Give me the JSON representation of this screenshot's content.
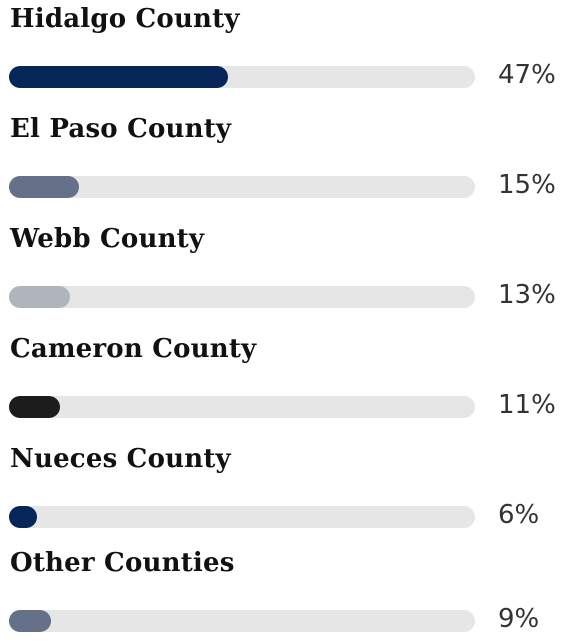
{
  "chart_data": {
    "type": "bar",
    "orientation": "horizontal",
    "categories": [
      "Hidalgo County",
      "El Paso County",
      "Webb County",
      "Cameron County",
      "Nueces County",
      "Other Counties"
    ],
    "values": [
      47,
      15,
      13,
      11,
      6,
      9
    ],
    "value_labels": [
      "47%",
      "15%",
      "13%",
      "11%",
      "6%",
      "9%"
    ],
    "unit": "%",
    "xlim": [
      0,
      100
    ],
    "bar_colors": [
      "#06265a",
      "#647188",
      "#b0b4bb",
      "#1c1c1c",
      "#06265a",
      "#647188"
    ],
    "track_color": "#e6e6e6",
    "grid": false,
    "legend": "none"
  },
  "rows": [
    {
      "label": "Hidalgo County",
      "value_label": "47%"
    },
    {
      "label": "El Paso County",
      "value_label": "15%"
    },
    {
      "label": "Webb County",
      "value_label": "13%"
    },
    {
      "label": "Cameron County",
      "value_label": "11%"
    },
    {
      "label": "Nueces County",
      "value_label": "6%"
    },
    {
      "label": "Other Counties",
      "value_label": "9%"
    }
  ]
}
